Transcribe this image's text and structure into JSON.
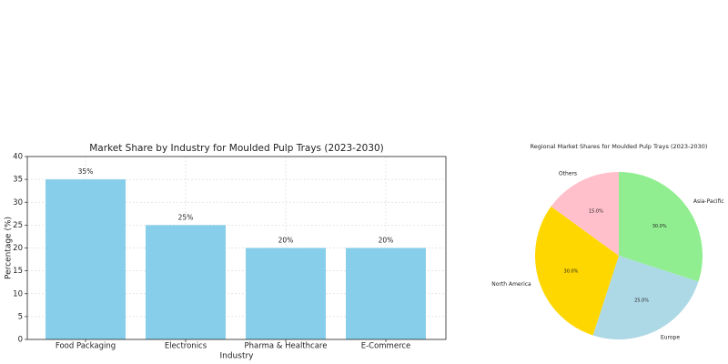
{
  "chart_data": [
    {
      "type": "bar",
      "title": "Market Share by Industry for Moulded Pulp Trays (2023-2030)",
      "categories": [
        "Food Packaging",
        "Electronics",
        "Pharma & Healthcare",
        "E-Commerce"
      ],
      "values": [
        35,
        25,
        20,
        20
      ],
      "value_labels": [
        "35%",
        "25%",
        "20%",
        "20%"
      ],
      "color": "#87ceeb",
      "xlabel": "Industry",
      "ylabel": "Percentage (%)",
      "ylim": [
        0,
        40
      ],
      "yticks": [
        0,
        5,
        10,
        15,
        20,
        25,
        30,
        35,
        40
      ],
      "grid": true
    },
    {
      "type": "pie",
      "title": "Regional Market Shares for Moulded Pulp Trays (2023-2030)",
      "categories": [
        "Asia-Pacific",
        "Europe",
        "North America",
        "Others"
      ],
      "values": [
        30,
        25,
        30,
        15
      ],
      "value_labels": [
        "30.0%",
        "25.0%",
        "30.0%",
        "15.0%"
      ],
      "colors": [
        "#90ee90",
        "#add8e6",
        "#ffd700",
        "#ffc0cb"
      ]
    }
  ]
}
